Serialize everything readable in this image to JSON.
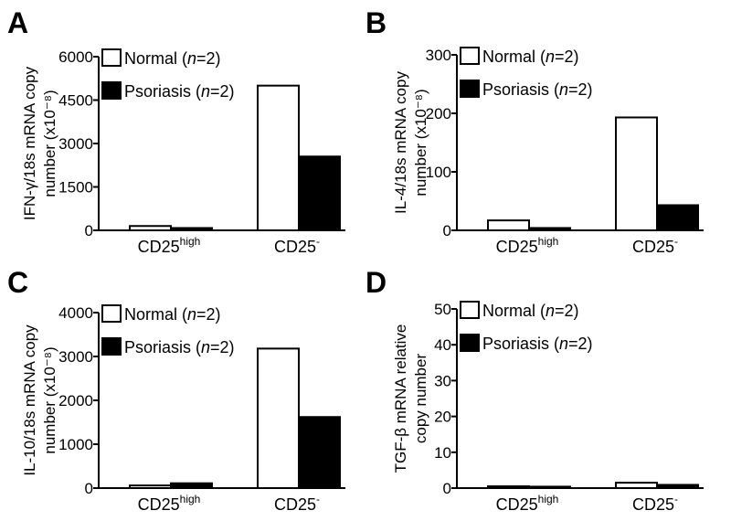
{
  "figure": {
    "legend": {
      "normal": "Normal (",
      "psoriasis": "Psoriasis (",
      "n_label": "n",
      "n_value": "=2)"
    },
    "categories": [
      {
        "main": "CD25",
        "sup": "high"
      },
      {
        "main": "CD25",
        "sup": "-"
      }
    ],
    "colors": {
      "normal": "#ffffff",
      "psoriasis": "#000000"
    }
  },
  "chart_data": [
    {
      "type": "bar",
      "panel_label": "A",
      "ylabel_lines": [
        "IFN-γ/18s mRNA copy",
        "number (x10⁻⁸)"
      ],
      "ylim": [
        0,
        6000
      ],
      "yticks": [
        0,
        1500,
        3000,
        4500,
        6000
      ],
      "yticks_labels": [
        "0",
        "1500",
        "3000",
        "4500",
        "6000"
      ],
      "categories": [
        "CD25high",
        "CD25-"
      ],
      "series": [
        {
          "name": "Normal (n=2)",
          "values": [
            150,
            5000
          ]
        },
        {
          "name": "Psoriasis (n=2)",
          "values": [
            80,
            2550
          ]
        }
      ],
      "legend": "top-left"
    },
    {
      "type": "bar",
      "panel_label": "B",
      "ylabel_lines": [
        "IL-4/18s mRNA copy",
        "number (x10⁻⁸)"
      ],
      "ylim": [
        0,
        300
      ],
      "yticks": [
        0,
        100,
        200,
        300
      ],
      "yticks_labels": [
        "0",
        "100",
        "200",
        "300"
      ],
      "categories": [
        "CD25high",
        "CD25-"
      ],
      "series": [
        {
          "name": "Normal (n=2)",
          "values": [
            17,
            193
          ]
        },
        {
          "name": "Psoriasis (n=2)",
          "values": [
            4,
            43
          ]
        }
      ],
      "legend": "top-left"
    },
    {
      "type": "bar",
      "panel_label": "C",
      "ylabel_lines": [
        "IL-10/18s mRNA copy",
        "number (x10⁻⁸)"
      ],
      "ylim": [
        0,
        4000
      ],
      "yticks": [
        0,
        1000,
        2000,
        3000,
        4000
      ],
      "yticks_labels": [
        "0",
        "1000",
        "2000",
        "3000",
        "4000"
      ],
      "categories": [
        "CD25high",
        "CD25-"
      ],
      "series": [
        {
          "name": "Normal (n=2)",
          "values": [
            60,
            3180
          ]
        },
        {
          "name": "Psoriasis (n=2)",
          "values": [
            110,
            1620
          ]
        }
      ],
      "legend": "top-left"
    },
    {
      "type": "bar",
      "panel_label": "D",
      "ylabel_lines": [
        "TGF-β mRNA relative",
        "copy number"
      ],
      "ylim": [
        0,
        50
      ],
      "yticks": [
        0,
        10,
        20,
        30,
        40,
        50
      ],
      "yticks_labels": [
        "0",
        "10",
        "20",
        "30",
        "40",
        "50"
      ],
      "categories": [
        "CD25high",
        "CD25-"
      ],
      "series": [
        {
          "name": "Normal (n=2)",
          "values": [
            0.5,
            1.5
          ]
        },
        {
          "name": "Psoriasis (n=2)",
          "values": [
            0.4,
            0.9
          ]
        }
      ],
      "legend": "top-left"
    }
  ]
}
